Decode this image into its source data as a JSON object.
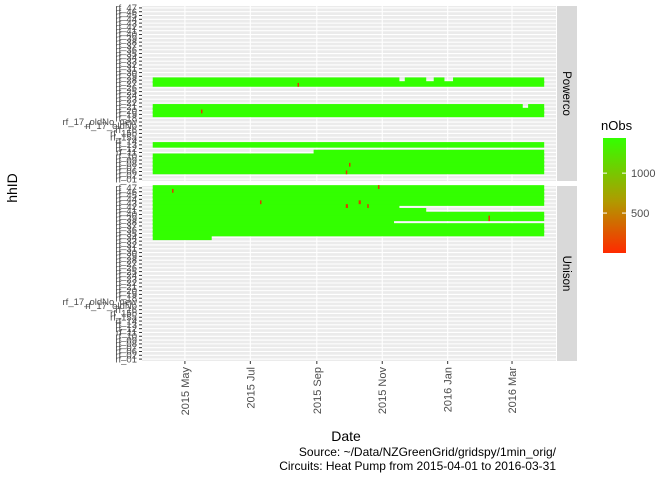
{
  "chart_data": {
    "type": "heatmap",
    "xlabel": "Date",
    "ylabel": "hhID",
    "x_ticks": [
      "2015 May",
      "2015 Jul",
      "2015 Sep",
      "2015 Nov",
      "2016 Jan",
      "2016 Mar"
    ],
    "x_tick_days": [
      30,
      91,
      153,
      214,
      275,
      335
    ],
    "x_range_days": [
      -10,
      376
    ],
    "date_range_days": [
      0,
      365
    ],
    "facets": [
      "Powerco",
      "Unison"
    ],
    "household_ids": [
      "rf_01",
      "rf_02",
      "rf_06",
      "rf_07",
      "rf_08",
      "rf_09",
      "rf_10",
      "rf_11",
      "rf_12",
      "rf_13",
      "rf_14",
      "rf_15a",
      "rf_15b",
      "rf_16",
      "rf_17_oldNo",
      "rf_17_oldNo_new",
      "rf_18",
      "rf_19",
      "rf_20",
      "rf_21",
      "rf_22",
      "rf_23",
      "rf_24",
      "rf_25",
      "rf_26",
      "rf_27",
      "rf_28",
      "rf_29",
      "rf_30",
      "rf_31",
      "rf_32",
      "rf_33",
      "rf_34",
      "rf_35",
      "rf_36",
      "rf_37",
      "rf_38",
      "rf_39",
      "rf_40",
      "rf_41",
      "rf_42",
      "rf_43",
      "rf_44",
      "rf_45",
      "rf_46",
      "rf_47"
    ],
    "panels": [
      {
        "facet": "Powerco",
        "rows": [
          {
            "hhID": "rf_06",
            "segments": [
              [
                0,
                365
              ]
            ],
            "low": [
              [
                180,
                1
              ]
            ]
          },
          {
            "hhID": "rf_07",
            "segments": [
              [
                0,
                365
              ]
            ],
            "low": []
          },
          {
            "hhID": "rf_08",
            "segments": [
              [
                0,
                365
              ]
            ],
            "low": [
              [
                183,
                1
              ]
            ]
          },
          {
            "hhID": "rf_09",
            "segments": [
              [
                0,
                365
              ]
            ],
            "low": []
          },
          {
            "hhID": "rf_10",
            "segments": [
              [
                0,
                365
              ]
            ],
            "low": []
          },
          {
            "hhID": "rf_11",
            "segments": [
              [
                150,
                365
              ]
            ],
            "low": []
          },
          {
            "hhID": "rf_13",
            "segments": [
              [
                0,
                365
              ]
            ],
            "low": []
          },
          {
            "hhID": "rf_19",
            "segments": [
              [
                0,
                365
              ]
            ],
            "low": []
          },
          {
            "hhID": "rf_20",
            "segments": [
              [
                0,
                365
              ]
            ],
            "low": [
              [
                45,
                1
              ]
            ]
          },
          {
            "hhID": "rf_21",
            "segments": [
              [
                0,
                345
              ],
              [
                350,
                365
              ]
            ],
            "low": []
          },
          {
            "hhID": "rf_27",
            "segments": [
              [
                0,
                365
              ]
            ],
            "low": [
              [
                135,
                1
              ]
            ]
          },
          {
            "hhID": "rf_28",
            "segments": [
              [
                0,
                230
              ],
              [
                235,
                255
              ],
              [
                262,
                272
              ],
              [
                280,
                365
              ]
            ],
            "low": []
          }
        ]
      },
      {
        "facet": "Unison",
        "rows": [
          {
            "hhID": "rf_47",
            "segments": [
              [
                0,
                365
              ]
            ],
            "low": [
              [
                210,
                1
              ]
            ]
          },
          {
            "hhID": "rf_46",
            "segments": [
              [
                0,
                365
              ]
            ],
            "low": [
              [
                18,
                1
              ]
            ]
          },
          {
            "hhID": "rf_45",
            "segments": [
              [
                0,
                365
              ]
            ],
            "low": []
          },
          {
            "hhID": "rf_44",
            "segments": [
              [
                0,
                365
              ]
            ],
            "low": []
          },
          {
            "hhID": "rf_43",
            "segments": [
              [
                0,
                365
              ]
            ],
            "low": [
              [
                100,
                1
              ],
              [
                192,
                2
              ]
            ]
          },
          {
            "hhID": "rf_42",
            "segments": [
              [
                0,
                230
              ]
            ],
            "low": [
              [
                180,
                2
              ],
              [
                200,
                1
              ]
            ]
          },
          {
            "hhID": "rf_41",
            "segments": [
              [
                0,
                255
              ]
            ],
            "low": []
          },
          {
            "hhID": "rf_40",
            "segments": [
              [
                0,
                365
              ]
            ],
            "low": []
          },
          {
            "hhID": "rf_39",
            "segments": [
              [
                0,
                365
              ]
            ],
            "low": [
              [
                313,
                1
              ]
            ]
          },
          {
            "hhID": "rf_38",
            "segments": [
              [
                0,
                225
              ]
            ],
            "low": []
          },
          {
            "hhID": "rf_37",
            "segments": [
              [
                0,
                365
              ]
            ],
            "low": []
          },
          {
            "hhID": "rf_36",
            "segments": [
              [
                0,
                365
              ]
            ],
            "low": []
          },
          {
            "hhID": "rf_35",
            "segments": [
              [
                0,
                365
              ]
            ],
            "low": []
          },
          {
            "hhID": "rf_34",
            "segments": [
              [
                0,
                55
              ]
            ],
            "low": []
          }
        ]
      }
    ],
    "legend": {
      "title": "nObs",
      "ticks": [
        500,
        1000
      ],
      "range": [
        0,
        1440
      ],
      "colors": [
        "#ff2a00",
        "#33ff00"
      ]
    }
  },
  "caption": {
    "line1": "Source: ~/Data/NZGreenGrid/gridspy/1min_orig/",
    "line2": "Circuits: Heat Pump from 2015-04-01 to 2016-03-31"
  }
}
